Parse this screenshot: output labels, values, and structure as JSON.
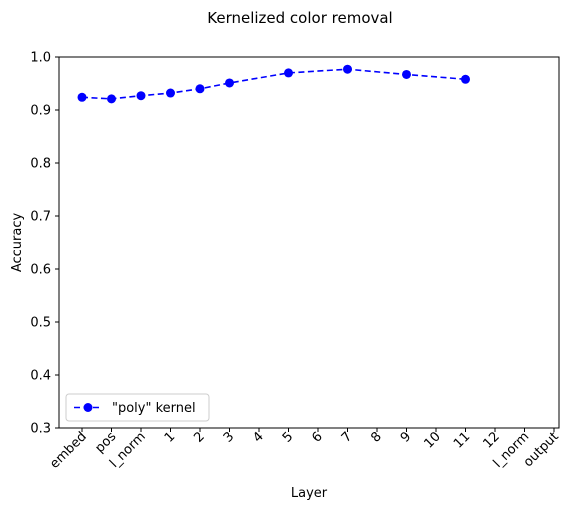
{
  "chart_data": {
    "type": "line",
    "title": "Kernelized color removal",
    "xlabel": "Layer",
    "ylabel": "Accuracy",
    "ylim": [
      0.3,
      1.0
    ],
    "yticks": [
      "0.3",
      "0.4",
      "0.5",
      "0.6",
      "0.7",
      "0.8",
      "0.9",
      "1.0"
    ],
    "categories": [
      "embed",
      "pos",
      "l_norm",
      "1",
      "2",
      "3",
      "4",
      "5",
      "6",
      "7",
      "8",
      "9",
      "10",
      "11",
      "12",
      "l_norm",
      "output"
    ],
    "series": [
      {
        "name": "\"poly\" kernel",
        "color": "#0000ff",
        "line_style": "dashed",
        "marker": "circle",
        "points": [
          {
            "x": "embed",
            "y": 0.924
          },
          {
            "x": "pos",
            "y": 0.921
          },
          {
            "x": "l_norm",
            "y": 0.927
          },
          {
            "x": "1",
            "y": 0.932
          },
          {
            "x": "2",
            "y": 0.94
          },
          {
            "x": "3",
            "y": 0.951
          },
          {
            "x": "5",
            "y": 0.97
          },
          {
            "x": "7",
            "y": 0.977
          },
          {
            "x": "9",
            "y": 0.967
          },
          {
            "x": "11",
            "y": 0.958
          }
        ]
      }
    ],
    "legend_position": "lower-left",
    "grid": false
  }
}
